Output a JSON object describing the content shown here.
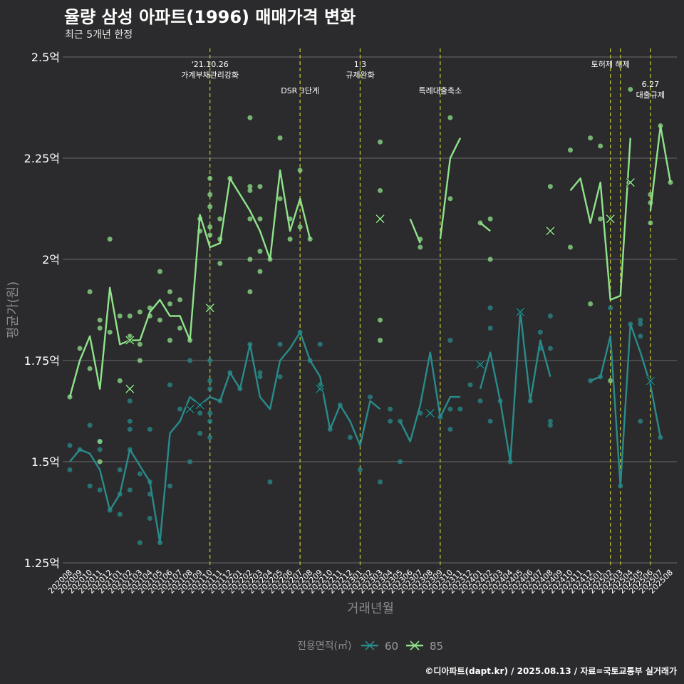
{
  "title": "율량 삼성 아파트(1996) 매매가격 변화",
  "subtitle": "최근 5개년 한정",
  "caption": "©디아파트(dapt.kr) / 2025.08.13 / 자료=국토교통부 실거래가",
  "colors": {
    "background": "#2b2b2d",
    "grid": "#6a6a6a",
    "event_line": "#cccc33",
    "series_60": "#2a8b8b",
    "series_85": "#8fe38a",
    "axis_text": "#ffffff",
    "axis_title": "#8a8a8a"
  },
  "chart_data": {
    "type": "line",
    "xlabel": "거래년월",
    "ylabel": "평균가(원)",
    "x": [
      "202008",
      "202009",
      "202010",
      "202011",
      "202012",
      "202101",
      "202102",
      "202103",
      "202104",
      "202105",
      "202106",
      "202107",
      "202108",
      "202109",
      "202110",
      "202111",
      "202112",
      "202201",
      "202202",
      "202203",
      "202204",
      "202205",
      "202206",
      "202207",
      "202208",
      "202209",
      "202210",
      "202211",
      "202212",
      "202301",
      "202302",
      "202303",
      "202304",
      "202305",
      "202306",
      "202307",
      "202308",
      "202309",
      "202310",
      "202311",
      "202312",
      "202401",
      "202402",
      "202403",
      "202404",
      "202405",
      "202406",
      "202407",
      "202408",
      "202409",
      "202410",
      "202411",
      "202412",
      "202501",
      "202502",
      "202503",
      "202504",
      "202505",
      "202506",
      "202507",
      "202508"
    ],
    "y_ticks": [
      1.25,
      1.5,
      1.75,
      2.0,
      2.25,
      2.5
    ],
    "y_tick_labels": [
      "1.25억",
      "1.5억",
      "1.75억",
      "2억",
      "2.25억",
      "2.5억"
    ],
    "ylim": [
      1.25,
      2.5
    ],
    "y_unit": "억",
    "grid": true,
    "legend": {
      "title": "전용면적(㎡)",
      "position": "bottom"
    },
    "series": [
      {
        "name": "60",
        "color": "#2a8b8b",
        "line": [
          1.5,
          1.53,
          1.52,
          1.48,
          1.38,
          1.42,
          1.53,
          1.49,
          1.45,
          1.3,
          1.57,
          1.6,
          1.66,
          1.64,
          1.66,
          1.65,
          1.72,
          1.68,
          1.79,
          1.66,
          1.63,
          1.75,
          1.78,
          1.82,
          1.75,
          1.71,
          1.58,
          1.64,
          1.6,
          1.54,
          1.65,
          1.63,
          null,
          1.6,
          1.55,
          1.64,
          1.77,
          1.61,
          1.66,
          1.66,
          null,
          1.68,
          1.77,
          1.65,
          1.5,
          1.87,
          1.65,
          1.8,
          1.71,
          null,
          null,
          null,
          1.7,
          1.71,
          1.81,
          1.44,
          1.84,
          1.77,
          1.69,
          1.56,
          null
        ],
        "points": [
          [
            0,
            1.54
          ],
          [
            0,
            1.48
          ],
          [
            1,
            1.53
          ],
          [
            2,
            1.59
          ],
          [
            2,
            1.44
          ],
          [
            3,
            1.53
          ],
          [
            3,
            1.43
          ],
          [
            3,
            1.55
          ],
          [
            4,
            1.38
          ],
          [
            5,
            1.48
          ],
          [
            5,
            1.37
          ],
          [
            5,
            1.42
          ],
          [
            6,
            1.65
          ],
          [
            6,
            1.58
          ],
          [
            6,
            1.53
          ],
          [
            6,
            1.6
          ],
          [
            6,
            1.43
          ],
          [
            7,
            1.3
          ],
          [
            7,
            1.47
          ],
          [
            8,
            1.58
          ],
          [
            8,
            1.45
          ],
          [
            8,
            1.42
          ],
          [
            8,
            1.36
          ],
          [
            9,
            1.3
          ],
          [
            10,
            1.69
          ],
          [
            10,
            1.44
          ],
          [
            11,
            1.63
          ],
          [
            12,
            1.75
          ],
          [
            12,
            1.5
          ],
          [
            13,
            1.57
          ],
          [
            13,
            1.64
          ],
          [
            13,
            1.62
          ],
          [
            14,
            1.75
          ],
          [
            14,
            1.7
          ],
          [
            14,
            1.68
          ],
          [
            14,
            1.62
          ],
          [
            14,
            1.6
          ],
          [
            14,
            1.56
          ],
          [
            15,
            1.65
          ],
          [
            16,
            1.72
          ],
          [
            17,
            1.68
          ],
          [
            18,
            1.79
          ],
          [
            19,
            1.72
          ],
          [
            19,
            1.71
          ],
          [
            20,
            1.45
          ],
          [
            21,
            1.71
          ],
          [
            21,
            1.79
          ],
          [
            23,
            1.82
          ],
          [
            24,
            1.75
          ],
          [
            25,
            1.69
          ],
          [
            25,
            1.68
          ],
          [
            25,
            1.79
          ],
          [
            26,
            1.58
          ],
          [
            27,
            1.64
          ],
          [
            28,
            1.56
          ],
          [
            29,
            1.48
          ],
          [
            30,
            1.66
          ],
          [
            31,
            1.45
          ],
          [
            32,
            1.63
          ],
          [
            32,
            1.6
          ],
          [
            33,
            1.5
          ],
          [
            33,
            1.6
          ],
          [
            35,
            1.62
          ],
          [
            36,
            1.62
          ],
          [
            37,
            1.61
          ],
          [
            38,
            1.58
          ],
          [
            38,
            1.63
          ],
          [
            38,
            1.8
          ],
          [
            39,
            1.63
          ],
          [
            40,
            1.69
          ],
          [
            41,
            1.65
          ],
          [
            41,
            1.74
          ],
          [
            42,
            1.88
          ],
          [
            42,
            1.83
          ],
          [
            42,
            1.6
          ],
          [
            43,
            1.65
          ],
          [
            44,
            1.5
          ],
          [
            45,
            1.87
          ],
          [
            46,
            1.65
          ],
          [
            47,
            1.82
          ],
          [
            47,
            1.78
          ],
          [
            48,
            1.6
          ],
          [
            48,
            1.59
          ],
          [
            48,
            1.78
          ],
          [
            48,
            1.86
          ],
          [
            52,
            1.7
          ],
          [
            53,
            1.71
          ],
          [
            54,
            1.88
          ],
          [
            55,
            1.44
          ],
          [
            56,
            1.84
          ],
          [
            57,
            1.6
          ],
          [
            57,
            1.84
          ],
          [
            57,
            1.85
          ],
          [
            57,
            1.81
          ],
          [
            58,
            1.7
          ],
          [
            59,
            1.56
          ]
        ],
        "markers": [
          [
            12,
            1.63
          ],
          [
            13,
            1.64
          ],
          [
            25,
            1.68
          ],
          [
            36,
            1.62
          ],
          [
            41,
            1.74
          ],
          [
            45,
            1.87
          ],
          [
            58,
            1.7
          ]
        ]
      },
      {
        "name": "85",
        "color": "#8fe38a",
        "line": [
          1.66,
          1.75,
          1.81,
          1.68,
          1.93,
          1.79,
          1.8,
          1.8,
          1.87,
          1.9,
          1.86,
          1.86,
          1.8,
          2.11,
          2.03,
          2.04,
          2.2,
          2.16,
          2.12,
          2.07,
          2.0,
          2.22,
          2.07,
          2.15,
          2.05,
          null,
          null,
          null,
          null,
          1.95,
          null,
          2.1,
          null,
          null,
          2.1,
          2.04,
          null,
          2.05,
          2.25,
          2.3,
          null,
          2.09,
          2.07,
          null,
          null,
          null,
          null,
          null,
          2.12,
          null,
          2.17,
          2.2,
          2.09,
          2.19,
          1.9,
          1.91,
          2.3,
          null,
          2.12,
          2.33,
          2.19
        ],
        "points": [
          [
            0,
            1.66
          ],
          [
            1,
            1.78
          ],
          [
            2,
            1.92
          ],
          [
            2,
            1.73
          ],
          [
            3,
            1.85
          ],
          [
            3,
            1.5
          ],
          [
            3,
            1.55
          ],
          [
            3,
            1.83
          ],
          [
            4,
            2.05
          ],
          [
            4,
            1.82
          ],
          [
            5,
            1.86
          ],
          [
            5,
            1.7
          ],
          [
            6,
            1.86
          ],
          [
            6,
            1.8
          ],
          [
            6,
            1.81
          ],
          [
            7,
            1.87
          ],
          [
            7,
            1.75
          ],
          [
            7,
            1.79
          ],
          [
            8,
            1.86
          ],
          [
            8,
            1.88
          ],
          [
            9,
            1.97
          ],
          [
            9,
            1.85
          ],
          [
            10,
            1.89
          ],
          [
            10,
            1.92
          ],
          [
            10,
            1.8
          ],
          [
            11,
            1.9
          ],
          [
            11,
            1.83
          ],
          [
            12,
            1.8
          ],
          [
            13,
            2.1
          ],
          [
            13,
            2.07
          ],
          [
            14,
            2.2
          ],
          [
            14,
            2.16
          ],
          [
            14,
            2.13
          ],
          [
            14,
            2.08
          ],
          [
            14,
            2.06
          ],
          [
            14,
            1.88
          ],
          [
            15,
            2.1
          ],
          [
            15,
            1.99
          ],
          [
            15,
            2.05
          ],
          [
            16,
            2.2
          ],
          [
            18,
            2.35
          ],
          [
            18,
            2.18
          ],
          [
            18,
            2.1
          ],
          [
            18,
            2.17
          ],
          [
            18,
            2.0
          ],
          [
            18,
            1.92
          ],
          [
            19,
            2.18
          ],
          [
            19,
            2.02
          ],
          [
            19,
            2.1
          ],
          [
            19,
            1.97
          ],
          [
            20,
            2.0
          ],
          [
            21,
            2.3
          ],
          [
            21,
            2.15
          ],
          [
            22,
            2.1
          ],
          [
            22,
            2.05
          ],
          [
            23,
            2.22
          ],
          [
            23,
            2.08
          ],
          [
            24,
            2.05
          ],
          [
            31,
            2.29
          ],
          [
            31,
            2.17
          ],
          [
            31,
            1.85
          ],
          [
            31,
            1.8
          ],
          [
            35,
            2.03
          ],
          [
            35,
            2.05
          ],
          [
            38,
            2.35
          ],
          [
            38,
            2.15
          ],
          [
            41,
            2.09
          ],
          [
            42,
            2.1
          ],
          [
            42,
            2.0
          ],
          [
            48,
            2.18
          ],
          [
            50,
            2.27
          ],
          [
            50,
            2.03
          ],
          [
            52,
            2.3
          ],
          [
            52,
            1.89
          ],
          [
            53,
            2.28
          ],
          [
            53,
            2.1
          ],
          [
            54,
            1.7
          ],
          [
            56,
            2.42
          ],
          [
            58,
            2.14
          ],
          [
            58,
            2.16
          ],
          [
            58,
            2.09
          ],
          [
            59,
            2.33
          ],
          [
            60,
            2.19
          ]
        ],
        "markers": [
          [
            6,
            1.8
          ],
          [
            6,
            1.68
          ],
          [
            14,
            1.88
          ],
          [
            31,
            2.1
          ],
          [
            48,
            2.07
          ],
          [
            54,
            2.1
          ],
          [
            56,
            2.19
          ]
        ]
      }
    ],
    "events": [
      {
        "index": 14,
        "label_lines": [
          "'21.10.26",
          "가계부채관리강화"
        ],
        "tier": 1
      },
      {
        "index": 23,
        "label_lines": [
          "DSR 3단계"
        ],
        "tier": 2
      },
      {
        "index": 29,
        "label_lines": [
          "1.3",
          "규제완화"
        ],
        "tier": 1
      },
      {
        "index": 37,
        "label_lines": [
          "특례대출축소"
        ],
        "tier": 2
      },
      {
        "index": 54,
        "label_lines": [
          "토허제 해제"
        ],
        "tier": 1
      },
      {
        "index": 55,
        "label_lines": [],
        "tier": 0
      },
      {
        "index": 58,
        "label_lines": [
          "6.27",
          "대출규제"
        ],
        "tier": 3
      }
    ]
  }
}
